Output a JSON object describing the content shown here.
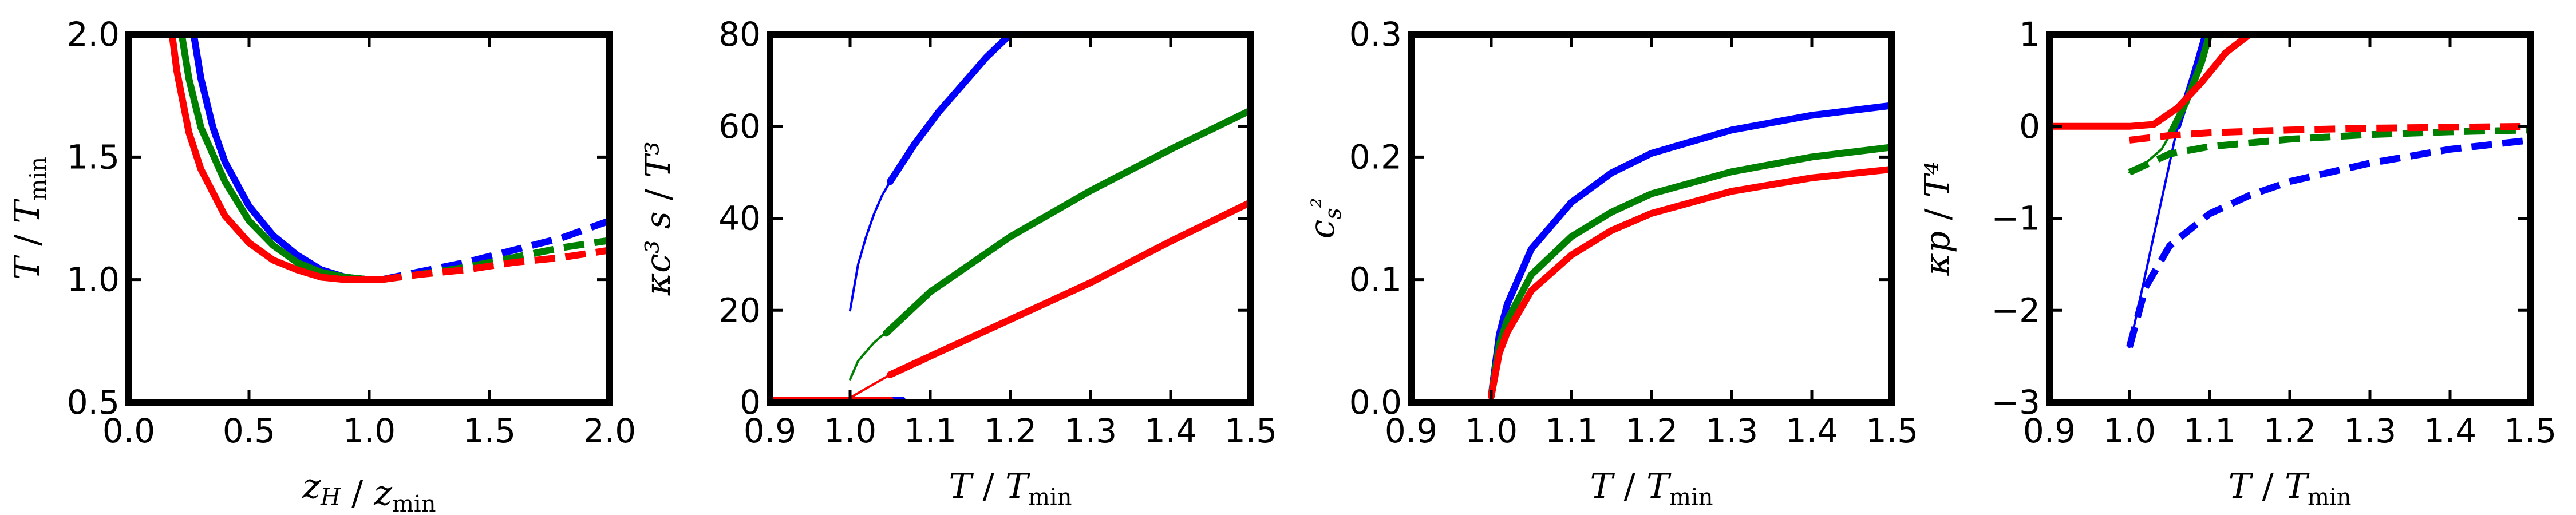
{
  "chart_data": [
    {
      "type": "line",
      "xlabel": "z_H / z_min",
      "ylabel": "T / T_min",
      "xlim": [
        0.0,
        2.0
      ],
      "ylim": [
        0.5,
        2.0
      ],
      "xticks": [
        "0.0",
        "0.5",
        "1.0",
        "1.5",
        "2.0"
      ],
      "yticks": [
        "0.5",
        "1.0",
        "1.5",
        "2.0"
      ],
      "series": [
        {
          "color": "#0000ff",
          "style": "solid",
          "width": "thick",
          "x": [
            0.27,
            0.3,
            0.35,
            0.4,
            0.5,
            0.6,
            0.7,
            0.8,
            0.9,
            1.0,
            1.05
          ],
          "y": [
            2.0,
            1.82,
            1.62,
            1.48,
            1.3,
            1.18,
            1.1,
            1.04,
            1.01,
            1.0,
            1.0
          ]
        },
        {
          "color": "#0000ff",
          "style": "dashed",
          "width": "thick",
          "x": [
            1.05,
            1.2,
            1.4,
            1.6,
            1.8,
            2.0
          ],
          "y": [
            1.0,
            1.03,
            1.07,
            1.12,
            1.17,
            1.24
          ]
        },
        {
          "color": "#008000",
          "style": "solid",
          "width": "thick",
          "x": [
            0.22,
            0.25,
            0.3,
            0.4,
            0.5,
            0.6,
            0.7,
            0.8,
            0.9,
            1.0,
            1.05
          ],
          "y": [
            2.0,
            1.82,
            1.62,
            1.4,
            1.24,
            1.14,
            1.07,
            1.03,
            1.01,
            1.0,
            1.0
          ]
        },
        {
          "color": "#008000",
          "style": "dashed",
          "width": "thick",
          "x": [
            1.05,
            1.2,
            1.4,
            1.6,
            1.8,
            2.0
          ],
          "y": [
            1.0,
            1.02,
            1.05,
            1.09,
            1.13,
            1.16
          ]
        },
        {
          "color": "#ff0000",
          "style": "solid",
          "width": "thick",
          "x": [
            0.18,
            0.2,
            0.25,
            0.3,
            0.4,
            0.5,
            0.6,
            0.7,
            0.8,
            0.9,
            1.0,
            1.05
          ],
          "y": [
            2.0,
            1.85,
            1.6,
            1.45,
            1.26,
            1.15,
            1.08,
            1.04,
            1.01,
            1.0,
            1.0,
            1.0
          ]
        },
        {
          "color": "#ff0000",
          "style": "dashed",
          "width": "thick",
          "x": [
            1.05,
            1.2,
            1.4,
            1.6,
            1.8,
            2.0
          ],
          "y": [
            1.0,
            1.02,
            1.04,
            1.07,
            1.09,
            1.12
          ]
        }
      ]
    },
    {
      "type": "line",
      "xlabel": "T / T_min",
      "ylabel": "κc³ s / T³",
      "xlim": [
        0.9,
        1.5
      ],
      "ylim": [
        0,
        80
      ],
      "xticks": [
        "0.9",
        "1.0",
        "1.1",
        "1.2",
        "1.3",
        "1.4",
        "1.5"
      ],
      "yticks": [
        "0",
        "20",
        "40",
        "60",
        "80"
      ],
      "series": [
        {
          "color": "#0000ff",
          "style": "solid",
          "width": "thin",
          "x": [
            1.0,
            1.01,
            1.02,
            1.03,
            1.04,
            1.05
          ],
          "y": [
            20,
            30,
            36,
            41,
            45,
            48
          ]
        },
        {
          "color": "#0000ff",
          "style": "solid",
          "width": "thick",
          "x": [
            1.05,
            1.08,
            1.11,
            1.14,
            1.17,
            1.2
          ],
          "y": [
            48,
            56,
            63,
            69,
            75,
            80
          ]
        },
        {
          "color": "#008000",
          "style": "solid",
          "width": "thin",
          "x": [
            1.0,
            1.01,
            1.02,
            1.03,
            1.04,
            1.045
          ],
          "y": [
            5,
            9,
            11,
            13,
            14.5,
            15
          ]
        },
        {
          "color": "#008000",
          "style": "solid",
          "width": "thick",
          "x": [
            1.045,
            1.1,
            1.2,
            1.3,
            1.4,
            1.5
          ],
          "y": [
            15,
            24,
            36,
            46,
            55,
            63.5
          ]
        },
        {
          "color": "#ff0000",
          "style": "solid",
          "width": "thin",
          "x": [
            1.0,
            1.02,
            1.04,
            1.05
          ],
          "y": [
            1,
            3,
            5,
            6
          ]
        },
        {
          "color": "#ff0000",
          "style": "solid",
          "width": "thick",
          "x": [
            1.05,
            1.1,
            1.2,
            1.3,
            1.4,
            1.5
          ],
          "y": [
            6,
            10,
            18,
            26,
            35,
            43.5
          ]
        },
        {
          "color": "#0000ff",
          "style": "solid",
          "width": "thick",
          "x": [
            1.04,
            1.065
          ],
          "y": [
            0.5,
            0.5
          ]
        },
        {
          "color": "#ff0000",
          "style": "solid",
          "width": "thick",
          "x": [
            0.9,
            1.05
          ],
          "y": [
            0.5,
            0.5
          ]
        }
      ]
    },
    {
      "type": "line",
      "xlabel": "T / T_min",
      "ylabel": "c_s²",
      "xlim": [
        0.9,
        1.5
      ],
      "ylim": [
        0.0,
        0.3
      ],
      "xticks": [
        "0.9",
        "1.0",
        "1.1",
        "1.2",
        "1.3",
        "1.4",
        "1.5"
      ],
      "yticks": [
        "0.0",
        "0.1",
        "0.2",
        "0.3"
      ],
      "series": [
        {
          "color": "#0000ff",
          "style": "solid",
          "width": "thick",
          "x": [
            1.0,
            1.01,
            1.02,
            1.05,
            1.1,
            1.15,
            1.2,
            1.3,
            1.4,
            1.5
          ],
          "y": [
            0.005,
            0.055,
            0.08,
            0.125,
            0.163,
            0.187,
            0.203,
            0.222,
            0.234,
            0.242
          ]
        },
        {
          "color": "#008000",
          "style": "solid",
          "width": "thick",
          "x": [
            1.0,
            1.01,
            1.02,
            1.05,
            1.1,
            1.15,
            1.2,
            1.3,
            1.4,
            1.5
          ],
          "y": [
            0.005,
            0.047,
            0.067,
            0.104,
            0.135,
            0.155,
            0.17,
            0.188,
            0.2,
            0.208
          ]
        },
        {
          "color": "#ff0000",
          "style": "solid",
          "width": "thick",
          "x": [
            1.0,
            1.01,
            1.02,
            1.05,
            1.1,
            1.15,
            1.2,
            1.3,
            1.4,
            1.5
          ],
          "y": [
            0.005,
            0.04,
            0.057,
            0.091,
            0.12,
            0.14,
            0.154,
            0.172,
            0.183,
            0.19
          ]
        }
      ]
    },
    {
      "type": "line",
      "xlabel": "T / T_min",
      "ylabel": "κp / T⁴",
      "xlim": [
        0.9,
        1.5
      ],
      "ylim": [
        -3,
        1
      ],
      "xticks": [
        "0.9",
        "1.0",
        "1.1",
        "1.2",
        "1.3",
        "1.4",
        "1.5"
      ],
      "yticks": [
        "−3",
        "−2",
        "−1",
        "0",
        "1"
      ],
      "series": [
        {
          "color": "#0000ff",
          "style": "solid",
          "width": "thin",
          "x": [
            1.0,
            1.02,
            1.04,
            1.06
          ],
          "y": [
            -2.4,
            -1.6,
            -0.8,
            0.0
          ]
        },
        {
          "color": "#0000ff",
          "style": "solid",
          "width": "thick",
          "x": [
            1.06,
            1.08,
            1.095
          ],
          "y": [
            0.0,
            0.55,
            1.0
          ]
        },
        {
          "color": "#0000ff",
          "style": "dashed",
          "width": "thick",
          "x": [
            1.0,
            1.02,
            1.05,
            1.1,
            1.15,
            1.2,
            1.3,
            1.4,
            1.5
          ],
          "y": [
            -2.4,
            -1.75,
            -1.3,
            -0.95,
            -0.75,
            -0.6,
            -0.4,
            -0.25,
            -0.15
          ]
        },
        {
          "color": "#008000",
          "style": "solid",
          "width": "thin",
          "x": [
            1.0,
            1.02,
            1.04,
            1.05
          ],
          "y": [
            -0.5,
            -0.4,
            -0.25,
            -0.1
          ]
        },
        {
          "color": "#008000",
          "style": "solid",
          "width": "thick",
          "x": [
            1.05,
            1.07,
            1.09,
            1.1
          ],
          "y": [
            -0.1,
            0.25,
            0.7,
            1.0
          ]
        },
        {
          "color": "#008000",
          "style": "dashed",
          "width": "thick",
          "x": [
            1.0,
            1.05,
            1.1,
            1.2,
            1.3,
            1.4,
            1.5
          ],
          "y": [
            -0.5,
            -0.3,
            -0.22,
            -0.14,
            -0.09,
            -0.06,
            -0.04
          ]
        },
        {
          "color": "#ff0000",
          "style": "solid",
          "width": "thick",
          "x": [
            0.9,
            0.95,
            1.0,
            1.03,
            1.06,
            1.09,
            1.12,
            1.15
          ],
          "y": [
            0.0,
            0.0,
            0.0,
            0.02,
            0.2,
            0.48,
            0.8,
            1.0
          ]
        },
        {
          "color": "#ff0000",
          "style": "dashed",
          "width": "thick",
          "x": [
            1.0,
            1.05,
            1.1,
            1.2,
            1.3,
            1.4,
            1.5
          ],
          "y": [
            -0.15,
            -0.1,
            -0.07,
            -0.04,
            -0.02,
            -0.01,
            0.0
          ]
        }
      ]
    }
  ]
}
